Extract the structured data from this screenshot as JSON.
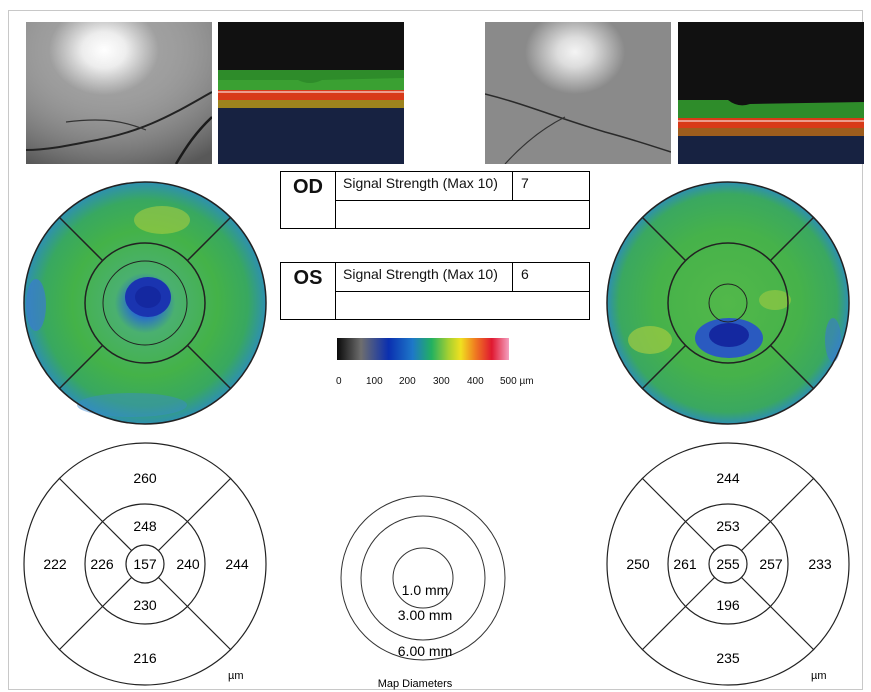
{
  "od": {
    "eye_label": "OD",
    "signal_label": "Signal Strength (Max 10)",
    "signal_value": "7",
    "sectors": {
      "center": "157",
      "inner_top": "248",
      "inner_left": "226",
      "inner_right": "240",
      "inner_bottom": "230",
      "outer_top": "260",
      "outer_left": "222",
      "outer_right": "244",
      "outer_bottom": "216"
    },
    "unit": "µm"
  },
  "os": {
    "eye_label": "OS",
    "signal_label": "Signal Strength (Max 10)",
    "signal_value": "6",
    "sectors": {
      "center": "255",
      "inner_top": "253",
      "inner_left": "261",
      "inner_right": "257",
      "inner_bottom": "196",
      "outer_top": "244",
      "outer_left": "250",
      "outer_right": "233",
      "outer_bottom": "235"
    },
    "unit": "µm"
  },
  "colorbar": {
    "ticks": [
      "0",
      "100",
      "200",
      "300",
      "400",
      "500 µm"
    ]
  },
  "map_diameters": {
    "inner": "1.0 mm",
    "middle": "3.00 mm",
    "outer": "6.00 mm",
    "caption": "Map Diameters"
  },
  "colors": {
    "retina_green": "#3fae3c",
    "fovea_blue": "#1c3aa8",
    "fundus_gray": "#6a6a6a"
  }
}
